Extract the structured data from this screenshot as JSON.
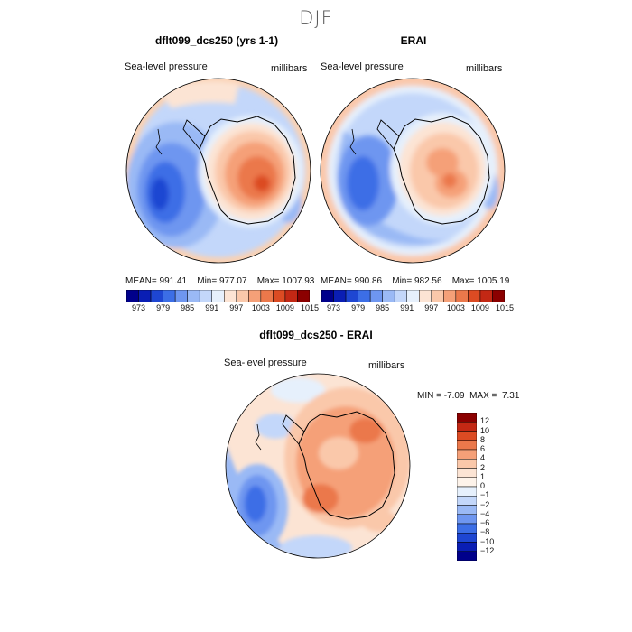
{
  "season": "DJF",
  "panels": {
    "model": {
      "title": "dflt099_dcs250 (yrs 1-1)",
      "variable": "Sea-level pressure",
      "units": "millibars",
      "mean_label": "MEAN=",
      "mean": "991.41",
      "min_label": "Min=",
      "min": "977.07",
      "max_label": "Max=",
      "max": "1007.93"
    },
    "obs": {
      "title": "ERAI",
      "variable": "Sea-level pressure",
      "units": "millibars",
      "mean_label": "MEAN=",
      "mean": "990.86",
      "min_label": "Min=",
      "min": "982.56",
      "max_label": "Max=",
      "max": "1005.19"
    },
    "diff": {
      "title": "dflt099_dcs250 - ERAI",
      "variable": "Sea-level pressure",
      "units": "millibars",
      "min_label": "MIN =",
      "min": "-7.09",
      "max_label": "MAX =",
      "max": "7.31"
    }
  },
  "abs_colorbar": {
    "ticks": [
      "973",
      "979",
      "985",
      "991",
      "997",
      "1003",
      "1009",
      "1015"
    ],
    "colors": [
      "#00008b",
      "#0a1eb4",
      "#1e46d2",
      "#3c6ee6",
      "#6e96f0",
      "#9ab9f5",
      "#c3d7fa",
      "#e6f0fc",
      "#fce4d4",
      "#fac8aa",
      "#f5a078",
      "#eb784b",
      "#dc4b23",
      "#c32814",
      "#8b0000"
    ]
  },
  "diff_colorbar": {
    "ticks": [
      "12",
      "10",
      "8",
      "6",
      "4",
      "2",
      "1",
      "0",
      "−1",
      "−2",
      "−4",
      "−6",
      "−8",
      "−10",
      "−12"
    ],
    "colors": [
      "#8b0000",
      "#c32814",
      "#dc4b23",
      "#eb784b",
      "#f5a078",
      "#fac8aa",
      "#fce4d4",
      "#fdf3ea",
      "#e6f0fc",
      "#c3d7fa",
      "#9ab9f5",
      "#6e96f0",
      "#3c6ee6",
      "#1e46d2",
      "#0a1eb4",
      "#00008b"
    ]
  }
}
